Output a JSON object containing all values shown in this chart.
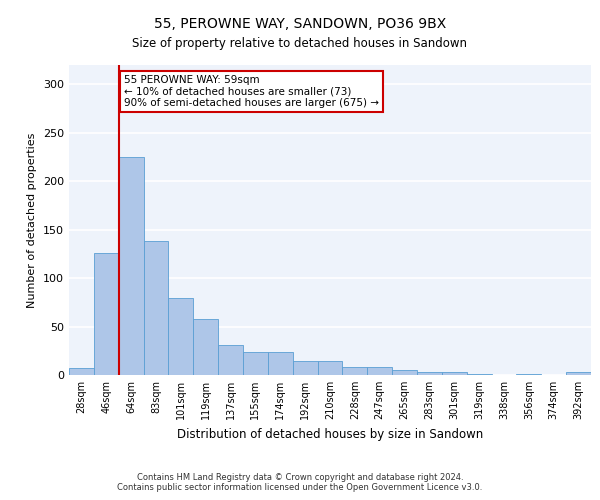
{
  "title1": "55, PEROWNE WAY, SANDOWN, PO36 9BX",
  "title2": "Size of property relative to detached houses in Sandown",
  "xlabel": "Distribution of detached houses by size in Sandown",
  "ylabel": "Number of detached properties",
  "categories": [
    "28sqm",
    "46sqm",
    "64sqm",
    "83sqm",
    "101sqm",
    "119sqm",
    "137sqm",
    "155sqm",
    "174sqm",
    "192sqm",
    "210sqm",
    "228sqm",
    "247sqm",
    "265sqm",
    "283sqm",
    "301sqm",
    "319sqm",
    "338sqm",
    "356sqm",
    "374sqm",
    "392sqm"
  ],
  "values": [
    7,
    126,
    225,
    138,
    80,
    58,
    31,
    24,
    24,
    14,
    14,
    8,
    8,
    5,
    3,
    3,
    1,
    0,
    1,
    0,
    3
  ],
  "bar_color": "#aec6e8",
  "bar_edge_color": "#5a9fd4",
  "vline_x": 1.5,
  "vline_color": "#cc0000",
  "annotation_text": "55 PEROWNE WAY: 59sqm\n← 10% of detached houses are smaller (73)\n90% of semi-detached houses are larger (675) →",
  "annotation_box_color": "#ffffff",
  "annotation_box_edge_color": "#cc0000",
  "ylim": [
    0,
    320
  ],
  "yticks": [
    0,
    50,
    100,
    150,
    200,
    250,
    300
  ],
  "bg_color": "#eef3fb",
  "footer1": "Contains HM Land Registry data © Crown copyright and database right 2024.",
  "footer2": "Contains public sector information licensed under the Open Government Licence v3.0."
}
